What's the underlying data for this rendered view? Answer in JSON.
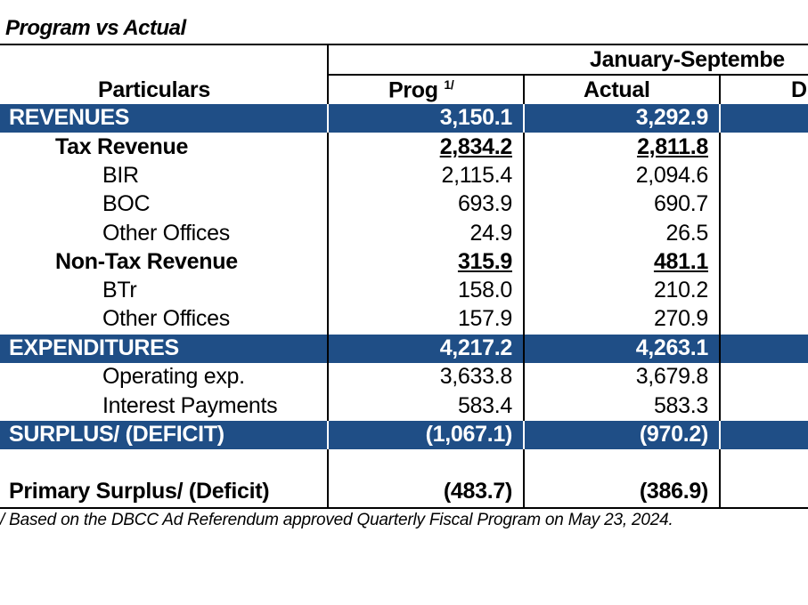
{
  "title": "Program vs Actual",
  "header": {
    "period": "January-Septembe",
    "particulars": "Particulars",
    "prog": "Prog",
    "prog_footnote_mark": "1/",
    "actual": "Actual",
    "third_col_partial": "D"
  },
  "rows": [
    {
      "label": "REVENUES",
      "prog": "3,150.1",
      "actual": "3,292.9"
    },
    {
      "label": "Tax Revenue",
      "prog": "2,834.2",
      "actual": "2,811.8"
    },
    {
      "label": "BIR",
      "prog": "2,115.4",
      "actual": "2,094.6"
    },
    {
      "label": "BOC",
      "prog": "693.9",
      "actual": "690.7"
    },
    {
      "label": "Other Offices",
      "prog": "24.9",
      "actual": "26.5"
    },
    {
      "label": "Non-Tax Revenue",
      "prog": "315.9",
      "actual": "481.1"
    },
    {
      "label": "BTr",
      "prog": "158.0",
      "actual": "210.2"
    },
    {
      "label": "Other Offices",
      "prog": "157.9",
      "actual": "270.9"
    },
    {
      "label": "EXPENDITURES",
      "prog": "4,217.2",
      "actual": "4,263.1"
    },
    {
      "label": "Operating exp.",
      "prog": "3,633.8",
      "actual": "3,679.8"
    },
    {
      "label": "Interest Payments",
      "prog": "583.4",
      "actual": "583.3"
    },
    {
      "label": "SURPLUS/ (DEFICIT)",
      "prog": "(1,067.1)",
      "actual": "(970.2)"
    },
    {
      "label": "Primary Surplus/ (Deficit)",
      "prog": "(483.7)",
      "actual": "(386.9)"
    }
  ],
  "footnote": "/ Based on the DBCC Ad Referendum approved Quarterly Fiscal Program on May 23, 2024.",
  "colors": {
    "section_band": "#1F4E86"
  }
}
